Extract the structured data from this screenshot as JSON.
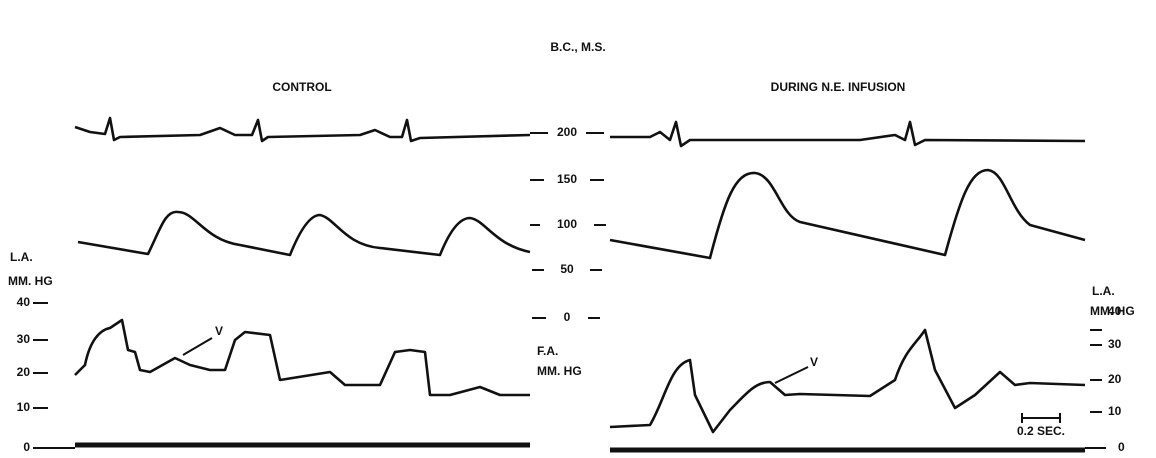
{
  "title": "B.C., M.S.",
  "panels": [
    {
      "title": "CONTROL"
    },
    {
      "title": "DURING N.E. INFUSION"
    }
  ],
  "left_axis": {
    "label": [
      "L.A.",
      "MM. HG"
    ],
    "ticks": [
      "40",
      "30",
      "20",
      "10",
      "0"
    ]
  },
  "center_axis": {
    "label": [
      "F.A.",
      "MM. HG"
    ],
    "ticks": [
      "200",
      "150",
      "100",
      "50",
      "0"
    ]
  },
  "right_axis": {
    "label": [
      "L.A.",
      "MM. HG"
    ],
    "ticks": [
      "40",
      "30",
      "20",
      "10",
      "0"
    ]
  },
  "annotations": {
    "v_left": "V",
    "v_right": "V",
    "time_scale": "0.2 SEC."
  }
}
